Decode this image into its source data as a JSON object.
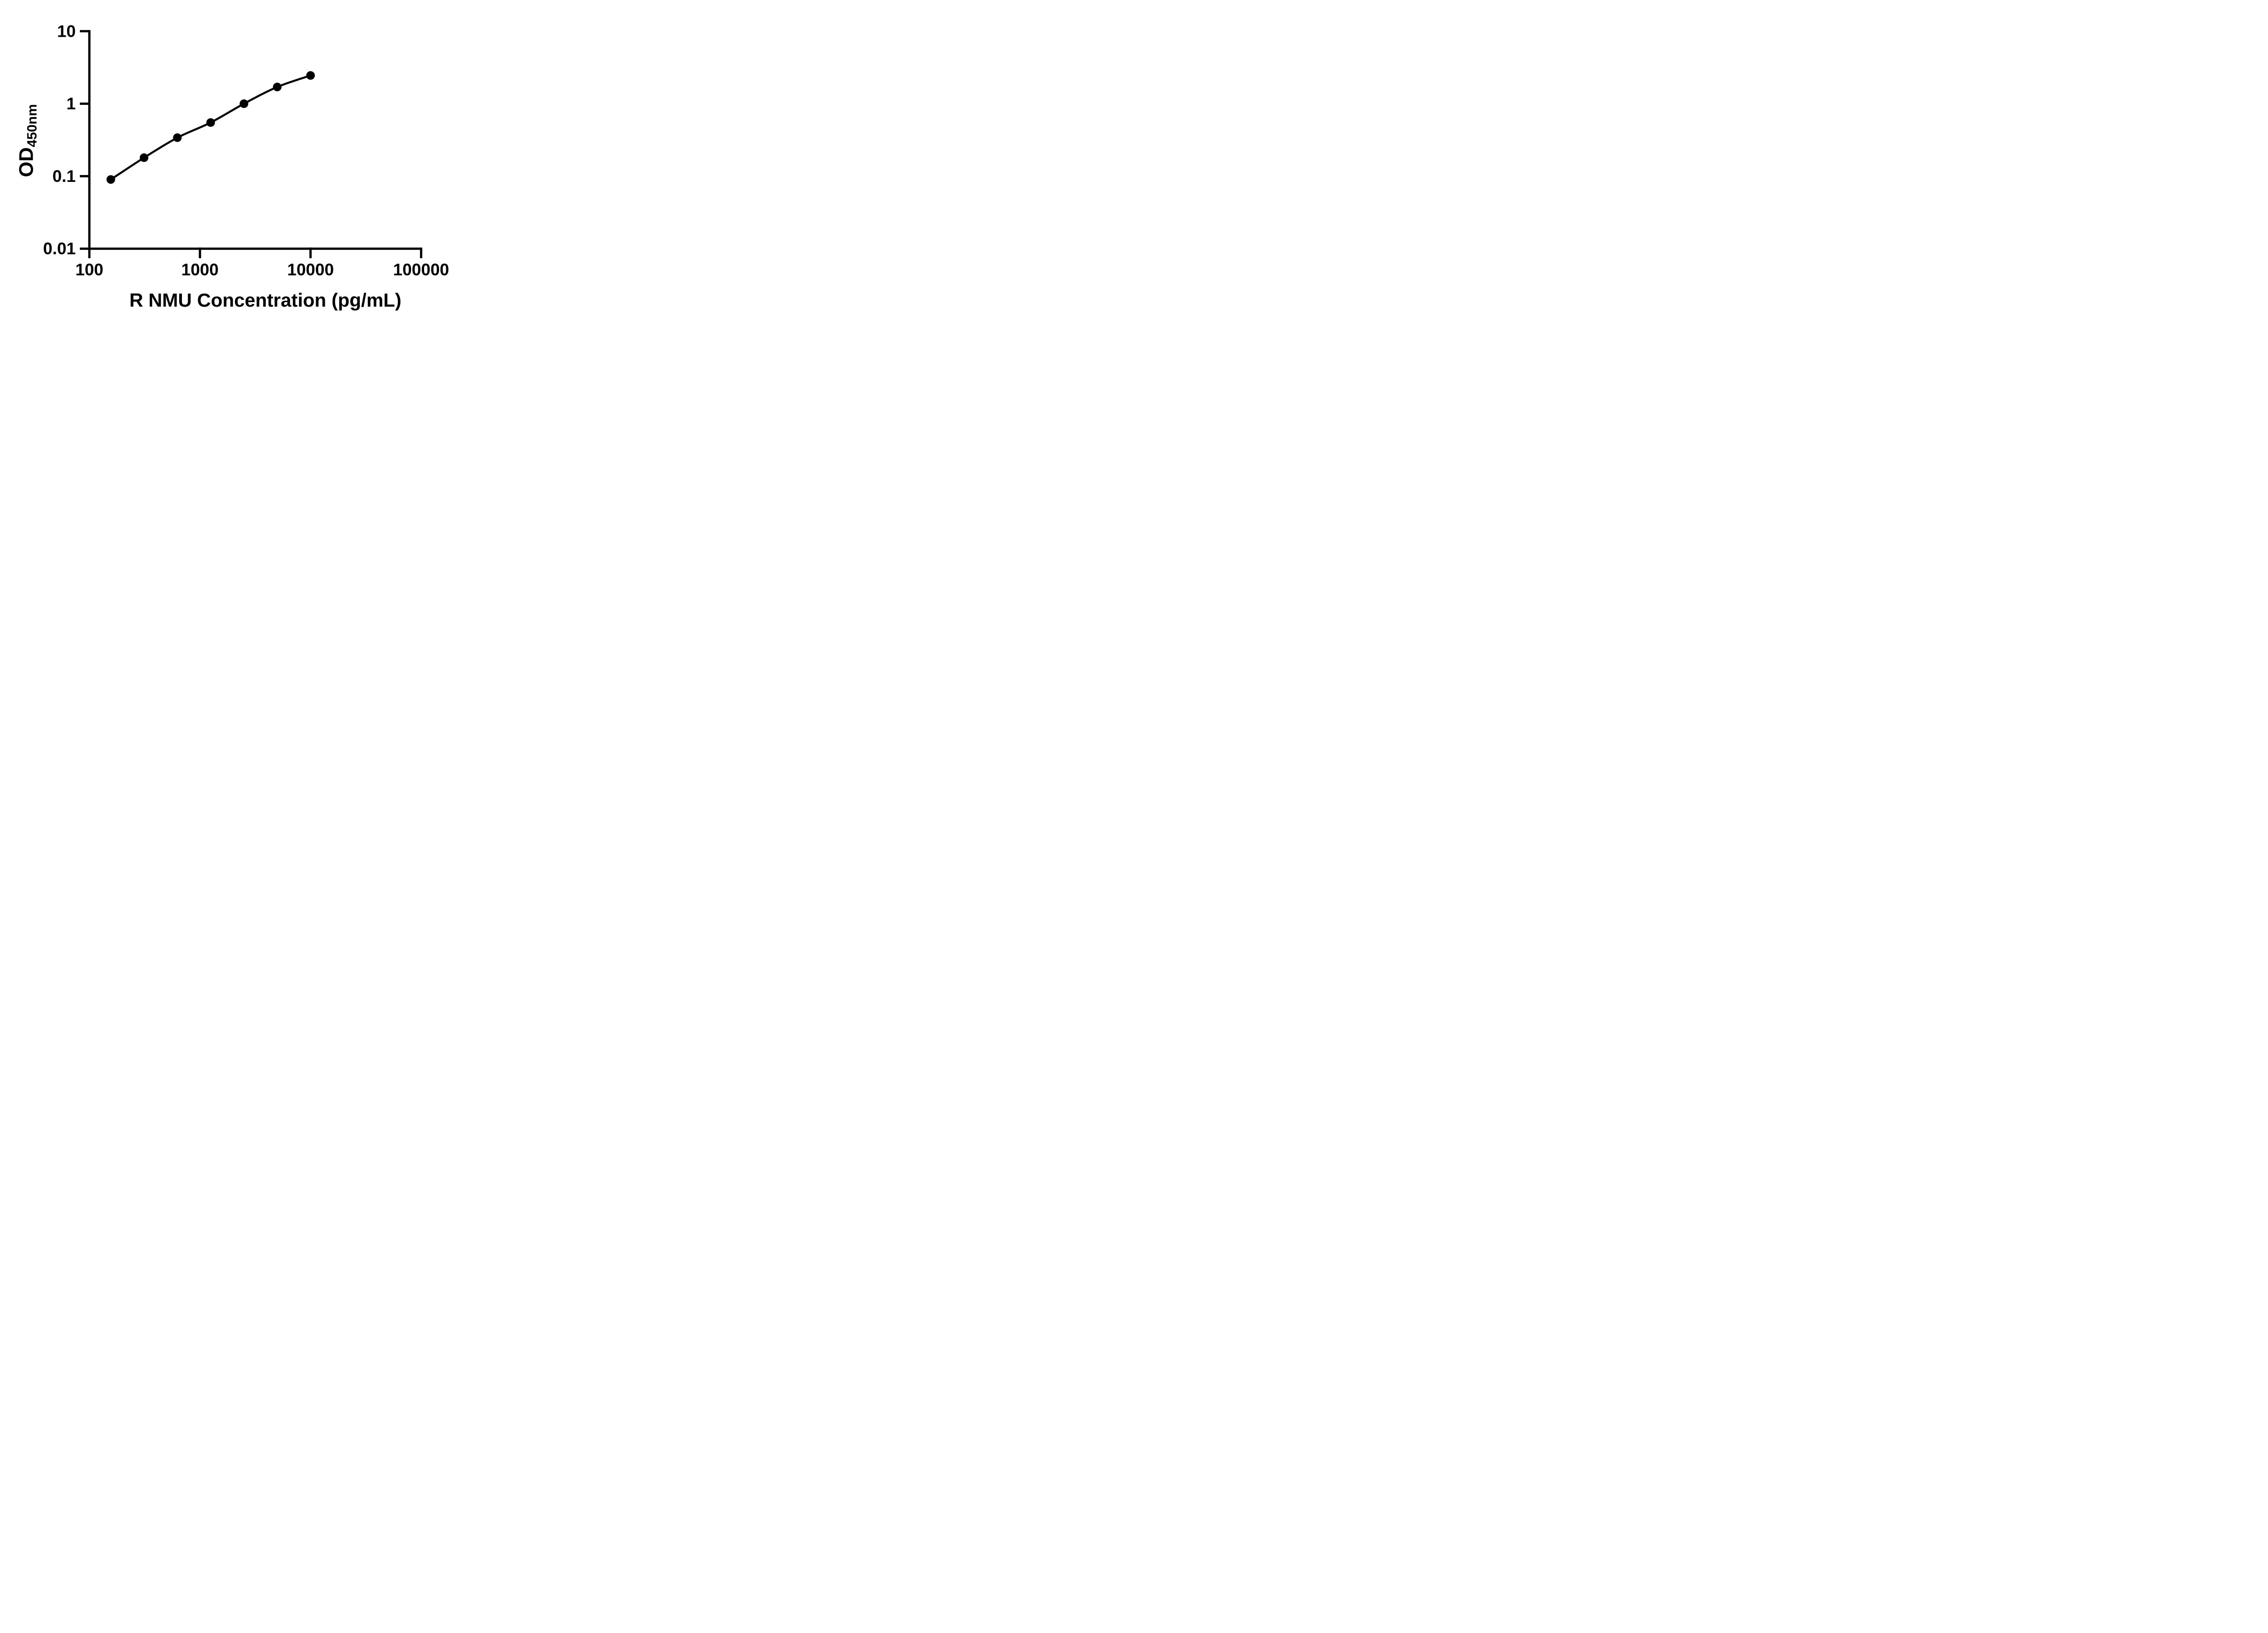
{
  "figure": {
    "background_color": "#ffffff",
    "ink_color": "#000000"
  },
  "chart_data": {
    "type": "scatter",
    "title": "",
    "xlabel": "R NMU Concentration (pg/mL)",
    "ylabel_main": "OD",
    "ylabel_sub": "450nm",
    "x_scale": "log",
    "y_scale": "log",
    "xlim": [
      100,
      100000
    ],
    "ylim": [
      0.01,
      10
    ],
    "x_ticks": [
      100,
      1000,
      10000,
      100000
    ],
    "x_tick_labels": [
      "100",
      "1000",
      "10000",
      "100000"
    ],
    "y_ticks": [
      10,
      1,
      0.1,
      0.01
    ],
    "y_tick_labels": [
      "10",
      "1",
      "0.1",
      "0.01"
    ],
    "grid": false,
    "legend_position": "none",
    "marker": "circle",
    "marker_color": "#000000",
    "line_style": "smooth",
    "series": [
      {
        "x": [
          156.25,
          312.5,
          625,
          1250,
          2500,
          5000,
          10000
        ],
        "y": [
          0.09,
          0.18,
          0.34,
          0.55,
          1.0,
          1.7,
          2.45
        ]
      }
    ]
  }
}
